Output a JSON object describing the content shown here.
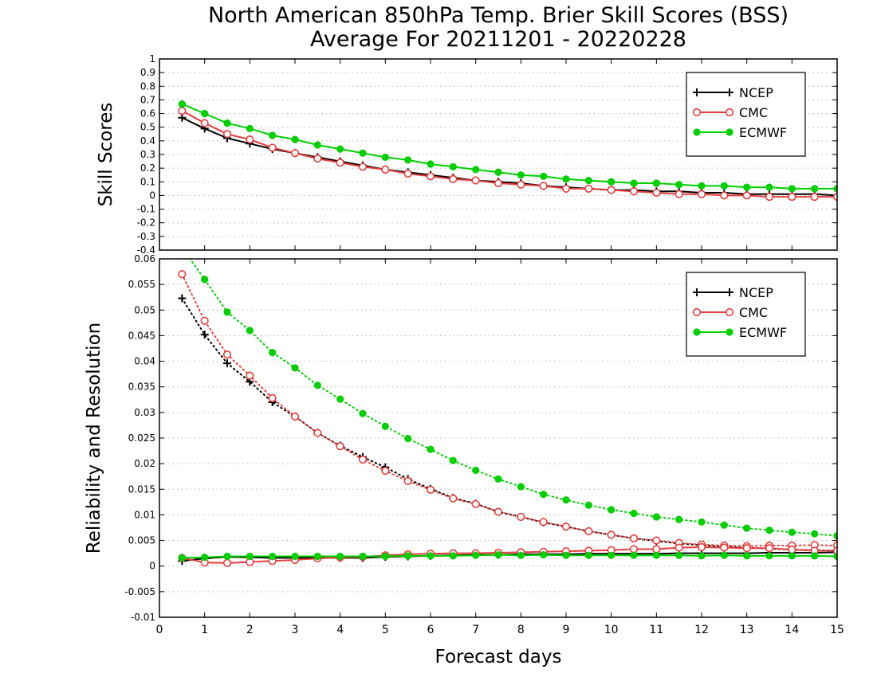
{
  "title_line1": "North American 850hPa Temp. Brier Skill Scores (BSS)",
  "title_line2": "Average For 20211201 - 20220228",
  "xlabel": "Forecast days",
  "colors": {
    "NCEP": "#000000",
    "CMC": "#e83c3c",
    "ECMWF": "#00d000",
    "grid": "#b4b4b4"
  },
  "chart_data": [
    {
      "type": "line",
      "ylabel": "Skill Scores",
      "xlim": [
        0,
        15
      ],
      "ylim": [
        -0.4,
        1
      ],
      "xticks": [
        0,
        1,
        2,
        3,
        4,
        5,
        6,
        7,
        8,
        9,
        10,
        11,
        12,
        13,
        14,
        15
      ],
      "yticks": [
        -0.4,
        -0.3,
        -0.2,
        -0.1,
        0,
        0.1,
        0.2,
        0.3,
        0.4,
        0.5,
        0.6,
        0.7,
        0.8,
        0.9,
        1
      ],
      "ytick_labels": [
        "-0.4",
        "-0.3",
        "-0.2",
        "-0.1",
        "0",
        "0.1",
        "0.2",
        "0.3",
        "0.4",
        "0.5",
        "0.6",
        "0.7",
        "0.8",
        "0.9",
        "1"
      ],
      "grid": "horizontal dotted",
      "legend": {
        "position": "top-right",
        "entries": [
          "NCEP",
          "CMC",
          "ECMWF"
        ]
      },
      "x": [
        0.5,
        1,
        1.5,
        2,
        2.5,
        3,
        3.5,
        4,
        4.5,
        5,
        5.5,
        6,
        6.5,
        7,
        7.5,
        8,
        8.5,
        9,
        9.5,
        10,
        10.5,
        11,
        11.5,
        12,
        12.5,
        13,
        13.5,
        14,
        14.5,
        15
      ],
      "series": [
        {
          "name": "NCEP",
          "marker": "plus",
          "line": "solid",
          "values": [
            0.57,
            0.49,
            0.42,
            0.38,
            0.34,
            0.31,
            0.28,
            0.25,
            0.22,
            0.19,
            0.17,
            0.15,
            0.13,
            0.11,
            0.1,
            0.09,
            0.07,
            0.06,
            0.05,
            0.04,
            0.04,
            0.03,
            0.03,
            0.02,
            0.02,
            0.01,
            0.01,
            0.01,
            0.01,
            0.0
          ]
        },
        {
          "name": "CMC",
          "marker": "circle-open",
          "line": "solid",
          "values": [
            0.62,
            0.53,
            0.45,
            0.41,
            0.35,
            0.31,
            0.27,
            0.24,
            0.21,
            0.19,
            0.16,
            0.14,
            0.12,
            0.11,
            0.09,
            0.08,
            0.07,
            0.05,
            0.05,
            0.04,
            0.03,
            0.02,
            0.01,
            0.01,
            0.0,
            0.0,
            -0.01,
            -0.01,
            -0.01,
            -0.01
          ]
        },
        {
          "name": "ECMWF",
          "marker": "circle-filled",
          "line": "solid",
          "values": [
            0.67,
            0.6,
            0.53,
            0.49,
            0.44,
            0.41,
            0.37,
            0.34,
            0.31,
            0.28,
            0.26,
            0.23,
            0.21,
            0.19,
            0.17,
            0.15,
            0.14,
            0.12,
            0.11,
            0.1,
            0.09,
            0.09,
            0.08,
            0.07,
            0.07,
            0.06,
            0.06,
            0.05,
            0.05,
            0.05
          ]
        }
      ]
    },
    {
      "type": "line",
      "ylabel": "Reliability and Resolution",
      "xlim": [
        0,
        15
      ],
      "ylim": [
        -0.01,
        0.06
      ],
      "xticks": [
        0,
        1,
        2,
        3,
        4,
        5,
        6,
        7,
        8,
        9,
        10,
        11,
        12,
        13,
        14,
        15
      ],
      "yticks": [
        -0.01,
        -0.005,
        0,
        0.005,
        0.01,
        0.015,
        0.02,
        0.025,
        0.03,
        0.035,
        0.04,
        0.045,
        0.05,
        0.055,
        0.06
      ],
      "ytick_labels": [
        "-0.01",
        "-0.005",
        "0",
        "0.005",
        "0.01",
        "0.015",
        "0.02",
        "0.025",
        "0.03",
        "0.035",
        "0.04",
        "0.045",
        "0.05",
        "0.055",
        "0.06"
      ],
      "grid": "horizontal dotted",
      "legend": {
        "position": "top-right",
        "entries": [
          "NCEP",
          "CMC",
          "ECMWF"
        ]
      },
      "x": [
        0.5,
        1,
        1.5,
        2,
        2.5,
        3,
        3.5,
        4,
        4.5,
        5,
        5.5,
        6,
        6.5,
        7,
        7.5,
        8,
        8.5,
        9,
        9.5,
        10,
        10.5,
        11,
        11.5,
        12,
        12.5,
        13,
        13.5,
        14,
        14.5,
        15
      ],
      "series": [
        {
          "name": "NCEP",
          "role": "resolution",
          "marker": "plus",
          "line": "dotted",
          "values": [
            0.0523,
            0.0452,
            0.0396,
            0.036,
            0.032,
            0.0292,
            0.026,
            0.0235,
            0.0213,
            0.0193,
            0.017,
            0.0151,
            0.0133,
            0.0122,
            0.0106,
            0.0096,
            0.0085,
            0.0077,
            0.0068,
            0.0061,
            0.0054,
            0.0049,
            0.0044,
            0.0041,
            0.0038,
            0.0036,
            0.0034,
            0.0032,
            0.0031,
            0.003
          ]
        },
        {
          "name": "CMC",
          "role": "resolution",
          "marker": "circle-open",
          "line": "dotted",
          "values": [
            0.057,
            0.0479,
            0.0413,
            0.0372,
            0.0328,
            0.0292,
            0.026,
            0.0234,
            0.0208,
            0.0186,
            0.0166,
            0.0149,
            0.0132,
            0.0121,
            0.0106,
            0.0096,
            0.0086,
            0.0077,
            0.0068,
            0.0061,
            0.0054,
            0.005,
            0.0045,
            0.0042,
            0.004,
            0.0039,
            0.004,
            0.004,
            0.0041,
            0.004
          ]
        },
        {
          "name": "ECMWF",
          "role": "resolution",
          "marker": "circle-filled",
          "line": "dotted",
          "values": [
            0.0622,
            0.056,
            0.0496,
            0.046,
            0.0417,
            0.0387,
            0.0353,
            0.0326,
            0.0298,
            0.0273,
            0.0249,
            0.0228,
            0.0206,
            0.0187,
            0.017,
            0.0155,
            0.014,
            0.0129,
            0.0119,
            0.011,
            0.0103,
            0.0096,
            0.0091,
            0.0086,
            0.008,
            0.0074,
            0.007,
            0.0066,
            0.0063,
            0.0059
          ]
        },
        {
          "name": "NCEP",
          "role": "reliability",
          "marker": "plus",
          "line": "solid",
          "values": [
            0.001,
            0.0015,
            0.0018,
            0.0017,
            0.0016,
            0.0016,
            0.0016,
            0.0016,
            0.0016,
            0.0018,
            0.0019,
            0.002,
            0.0021,
            0.0022,
            0.0022,
            0.0023,
            0.0023,
            0.0023,
            0.0024,
            0.0024,
            0.0024,
            0.0024,
            0.0025,
            0.0025,
            0.0025,
            0.0025,
            0.0026,
            0.0026,
            0.0026,
            0.0027
          ]
        },
        {
          "name": "CMC",
          "role": "reliability",
          "marker": "circle-open",
          "line": "solid",
          "values": [
            0.0016,
            0.0007,
            0.0006,
            0.0008,
            0.001,
            0.0012,
            0.0015,
            0.0017,
            0.0018,
            0.0021,
            0.0023,
            0.0024,
            0.0025,
            0.0025,
            0.0026,
            0.0027,
            0.0028,
            0.0029,
            0.003,
            0.0031,
            0.0033,
            0.0033,
            0.0036,
            0.0037,
            0.0036,
            0.0035,
            0.0035,
            0.0032,
            0.003,
            0.003
          ]
        },
        {
          "name": "ECMWF",
          "role": "reliability",
          "marker": "circle-filled",
          "line": "solid",
          "values": [
            0.0016,
            0.0017,
            0.0019,
            0.0019,
            0.0019,
            0.0019,
            0.0019,
            0.0019,
            0.0019,
            0.0019,
            0.002,
            0.002,
            0.002,
            0.0021,
            0.0022,
            0.0021,
            0.0022,
            0.0021,
            0.0021,
            0.0021,
            0.0021,
            0.0021,
            0.0021,
            0.002,
            0.0021,
            0.002,
            0.002,
            0.002,
            0.002,
            0.0019
          ]
        }
      ]
    }
  ]
}
